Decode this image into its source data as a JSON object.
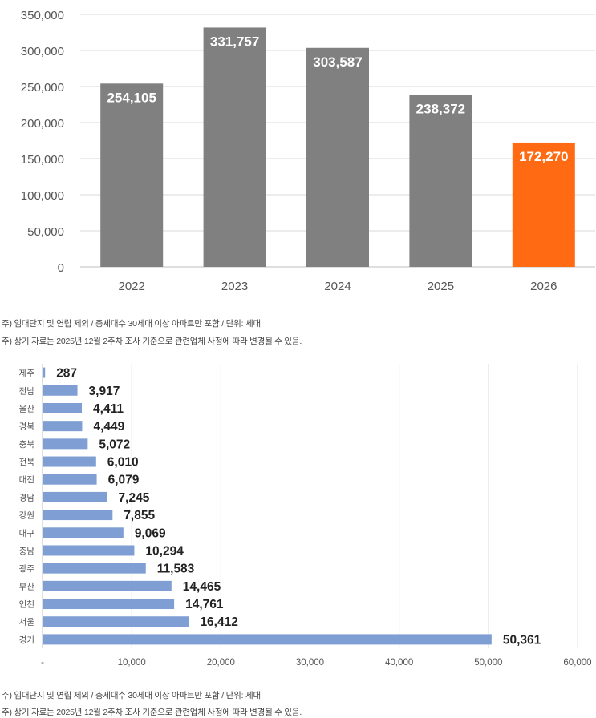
{
  "chart_data": [
    {
      "type": "bar",
      "orientation": "vertical",
      "categories": [
        "2022",
        "2023",
        "2024",
        "2025",
        "2026"
      ],
      "values": [
        254105,
        331757,
        303587,
        238372,
        172270
      ],
      "value_labels": [
        "254,105",
        "331,757",
        "303,587",
        "238,372",
        "172,270"
      ],
      "bar_colors": [
        "#808080",
        "#808080",
        "#808080",
        "#808080",
        "#ff6a13"
      ],
      "ylim": [
        0,
        350000
      ],
      "y_ticks": [
        0,
        50000,
        100000,
        150000,
        200000,
        250000,
        300000,
        350000
      ],
      "y_tick_labels": [
        "0",
        "50,000",
        "100,000",
        "150,000",
        "200,000",
        "250,000",
        "300,000",
        "350,000"
      ],
      "grid": "horizontal",
      "title": "",
      "xlabel": "",
      "ylabel": ""
    },
    {
      "type": "bar",
      "orientation": "horizontal",
      "categories": [
        "제주",
        "전남",
        "울산",
        "경북",
        "충북",
        "전북",
        "대전",
        "경남",
        "강원",
        "대구",
        "충남",
        "광주",
        "부산",
        "인천",
        "서울",
        "경기"
      ],
      "values": [
        287,
        3917,
        4411,
        4449,
        5072,
        6010,
        6079,
        7245,
        7855,
        9069,
        10294,
        11583,
        14465,
        14761,
        16412,
        50361
      ],
      "value_labels": [
        "287",
        "3,917",
        "4,411",
        "4,449",
        "5,072",
        "6,010",
        "6,079",
        "7,245",
        "7,855",
        "9,069",
        "10,294",
        "11,583",
        "14,465",
        "14,761",
        "16,412",
        "50,361"
      ],
      "bar_color": "#7f9fd4",
      "xlim": [
        0,
        60000
      ],
      "x_ticks": [
        0,
        10000,
        20000,
        30000,
        40000,
        50000,
        60000
      ],
      "x_tick_labels": [
        "-",
        "10,000",
        "20,000",
        "30,000",
        "40,000",
        "50,000",
        "60,000"
      ],
      "grid": "vertical",
      "title": "",
      "xlabel": "",
      "ylabel": ""
    }
  ],
  "notes": {
    "top_line1": "주) 임대단지 및 연립 제외 / 총세대수 30세대 이상 아파트만 포함 / 단위: 세대",
    "top_line2": "주) 상기 자료는 2025년 12월 2주차 조사 기준으로 관련업체 사정에 따라 변경될 수 있음.",
    "bottom_line1": "주) 임대단지 및 연립 제외 / 총세대수 30세대 이상 아파트만 포함 / 단위: 세대",
    "bottom_line2": "주) 상기 자료는 2025년 12월 2주차 조사 기준으로 관련업체 사정에 따라 변경될 수 있음."
  }
}
